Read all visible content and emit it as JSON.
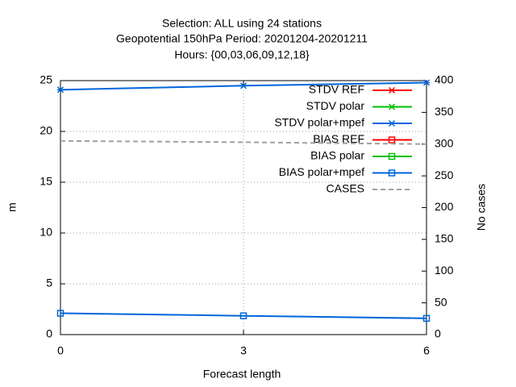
{
  "chart_data": {
    "type": "line",
    "title": [
      "Selection: ALL using    24 stations",
      "Geopotential 150hPa   Period: 20201204-20201211",
      "Hours: {00,03,06,09,12,18}"
    ],
    "xlabel": "Forecast length",
    "ylabel": "m",
    "y2label": "No cases",
    "x": [
      0,
      3,
      6
    ],
    "xlim": [
      0,
      6
    ],
    "xticks": [
      0,
      3,
      6
    ],
    "ylim": [
      0,
      25
    ],
    "yticks": [
      0,
      5,
      10,
      15,
      20,
      25
    ],
    "y2lim": [
      0,
      400
    ],
    "y2ticks": [
      0,
      50,
      100,
      150,
      200,
      250,
      300,
      350,
      400
    ],
    "grid": true,
    "legend": "top-right",
    "series": [
      {
        "name": "STDV REF",
        "color": "#ff0000",
        "marker": "cross",
        "values": [
          null,
          null,
          null
        ]
      },
      {
        "name": "STDV polar",
        "color": "#00c000",
        "marker": "cross",
        "values": [
          null,
          null,
          null
        ]
      },
      {
        "name": "STDV polar+mpef",
        "color": "#0066dd",
        "marker": "cross",
        "values": [
          24.1,
          24.5,
          24.8
        ]
      },
      {
        "name": "BIAS REF",
        "color": "#ff0000",
        "marker": "square",
        "values": [
          null,
          null,
          null
        ]
      },
      {
        "name": "BIAS polar",
        "color": "#00c000",
        "marker": "square",
        "values": [
          null,
          null,
          null
        ]
      },
      {
        "name": "BIAS polar+mpef",
        "color": "#0066dd",
        "marker": "square",
        "values": [
          2.1,
          1.85,
          1.6
        ]
      },
      {
        "name": "CASES",
        "color": "#a0a0a0",
        "marker": "none",
        "dash": true,
        "axis": "y2",
        "values": [
          305,
          303,
          300
        ]
      }
    ]
  }
}
